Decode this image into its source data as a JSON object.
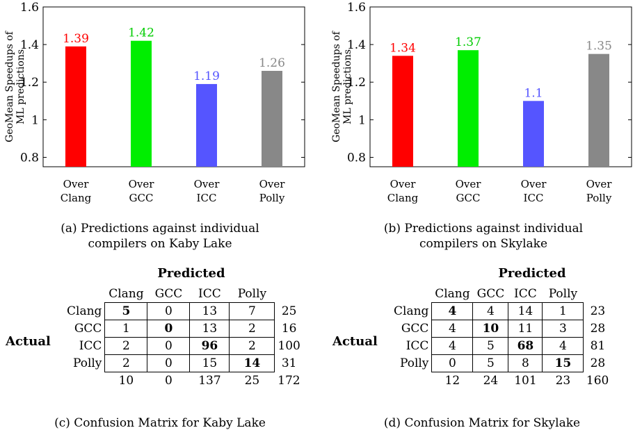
{
  "chart_data": [
    {
      "type": "bar",
      "ylabel": "GeoMean Speedups of ML predictions",
      "ylabel_lines": [
        "GeoMean Speedups of",
        "ML predictions"
      ],
      "ylim": [
        0.75,
        1.6
      ],
      "yticks": [
        0.8,
        1,
        1.2,
        1.4,
        1.6
      ],
      "ytick_labels": [
        "0.8",
        "1",
        "1.2",
        "1.4",
        "1.6"
      ],
      "categories": [
        [
          "Over",
          "Clang"
        ],
        [
          "Over",
          "GCC"
        ],
        [
          "Over",
          "ICC"
        ],
        [
          "Over",
          "Polly"
        ]
      ],
      "values": [
        1.39,
        1.42,
        1.19,
        1.26
      ],
      "value_labels": [
        "1.39",
        "1.42",
        "1.19",
        "1.26"
      ],
      "colors": [
        "#ff0000",
        "#00ee00",
        "#5555ff",
        "#888888"
      ],
      "grid": false
    },
    {
      "type": "bar",
      "ylabel": "GeoMean Speedups of ML predictions",
      "ylabel_lines": [
        "GeoMean Speedups of",
        "ML predictions"
      ],
      "ylim": [
        0.75,
        1.6
      ],
      "yticks": [
        0.8,
        1,
        1.2,
        1.4,
        1.6
      ],
      "ytick_labels": [
        "0.8",
        "1",
        "1.2",
        "1.4",
        "1.6"
      ],
      "categories": [
        [
          "Over",
          "Clang"
        ],
        [
          "Over",
          "GCC"
        ],
        [
          "Over",
          "ICC"
        ],
        [
          "Over",
          "Polly"
        ]
      ],
      "values": [
        1.34,
        1.37,
        1.1,
        1.35
      ],
      "value_labels": [
        "1.34",
        "1.37",
        "1.1",
        "1.35"
      ],
      "colors": [
        "#ff0000",
        "#00ee00",
        "#5555ff",
        "#888888"
      ],
      "grid": false
    },
    {
      "type": "table",
      "title": "Predicted",
      "row_header": "Actual",
      "columns": [
        "Clang",
        "GCC",
        "ICC",
        "Polly"
      ],
      "rows": [
        {
          "label": "Clang",
          "values": [
            "5",
            "0",
            "13",
            "7"
          ],
          "total": "25"
        },
        {
          "label": "GCC",
          "values": [
            "1",
            "0",
            "13",
            "2"
          ],
          "total": "16"
        },
        {
          "label": "ICC",
          "values": [
            "2",
            "0",
            "96",
            "2"
          ],
          "total": "100"
        },
        {
          "label": "Polly",
          "values": [
            "2",
            "0",
            "15",
            "14"
          ],
          "total": "31"
        }
      ],
      "column_totals": [
        "10",
        "0",
        "137",
        "25",
        "172"
      ]
    },
    {
      "type": "table",
      "title": "Predicted",
      "row_header": "Actual",
      "columns": [
        "Clang",
        "GCC",
        "ICC",
        "Polly"
      ],
      "rows": [
        {
          "label": "Clang",
          "values": [
            "4",
            "4",
            "14",
            "1"
          ],
          "total": "23"
        },
        {
          "label": "GCC",
          "values": [
            "4",
            "10",
            "11",
            "3"
          ],
          "total": "28"
        },
        {
          "label": "ICC",
          "values": [
            "4",
            "5",
            "68",
            "4"
          ],
          "total": "81"
        },
        {
          "label": "Polly",
          "values": [
            "0",
            "5",
            "8",
            "15"
          ],
          "total": "28"
        }
      ],
      "column_totals": [
        "12",
        "24",
        "101",
        "23",
        "160"
      ]
    }
  ],
  "captions": {
    "a": [
      "(a) Predictions against individual",
      "compilers on Kaby Lake"
    ],
    "b": [
      "(b) Predictions against individual",
      "compilers on Skylake"
    ],
    "c": "(c) Confusion Matrix for Kaby Lake",
    "d": "(d) Confusion Matrix for Skylake"
  }
}
